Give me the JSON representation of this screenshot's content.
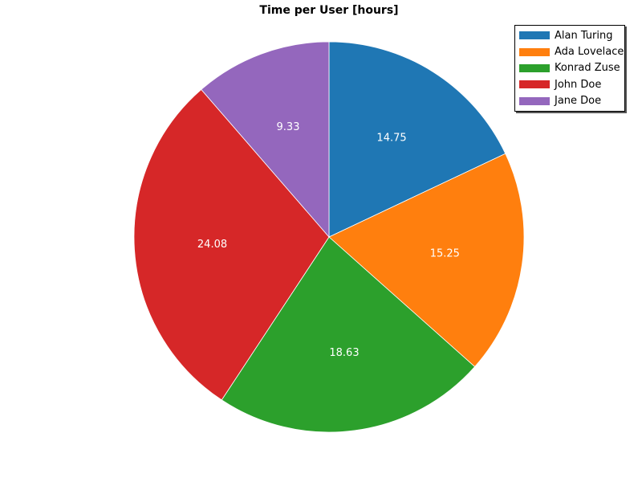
{
  "chart_data": {
    "type": "pie",
    "title": "Time per User [hours]",
    "labels": [
      "Alan Turing",
      "Ada Lovelace",
      "Konrad Zuse",
      "John Doe",
      "Jane Doe"
    ],
    "values": [
      14.75,
      15.25,
      18.63,
      24.08,
      9.33
    ],
    "value_labels": [
      "14.75",
      "15.25",
      "18.63",
      "24.08",
      "9.33"
    ],
    "colors": [
      "#1f77b4",
      "#ff7f0e",
      "#2ca02c",
      "#d62728",
      "#9467bd"
    ],
    "start_angle": "12 o'clock",
    "direction": "clockwise",
    "legend": "top-right"
  }
}
